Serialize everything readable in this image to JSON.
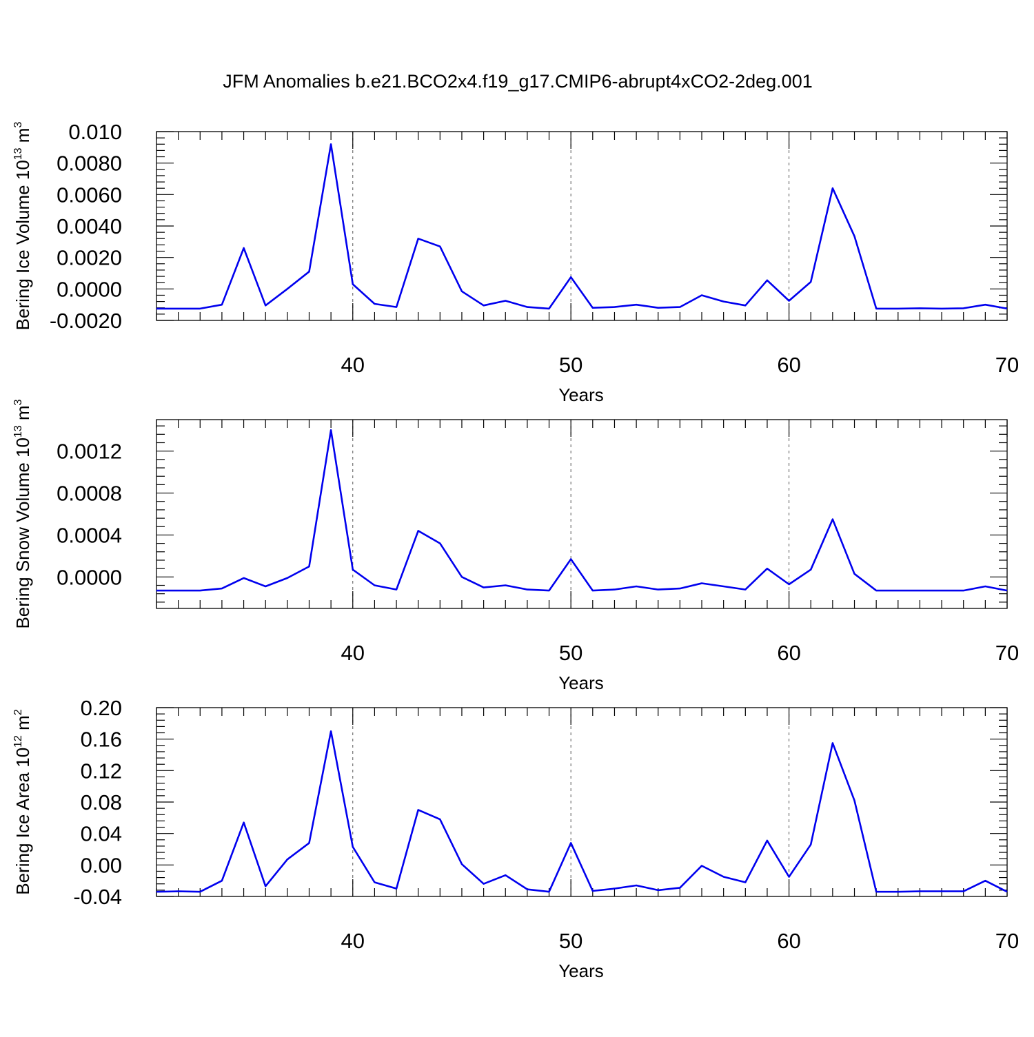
{
  "figure_title": "JFM Anomalies b.e21.BCO2x4.f19_g17.CMIP6-abrupt4xCO2-2deg.001",
  "line_color": "#0000ee",
  "chart_data": [
    {
      "type": "line",
      "xlabel": "Years",
      "ylabel": {
        "base": "Bering Ice Volume 10",
        "exp": "13",
        "unit": " m",
        "unit_exp": "3"
      },
      "xlim": [
        31,
        70
      ],
      "ylim": [
        -0.002,
        0.01
      ],
      "xticks": [
        40,
        50,
        60,
        70
      ],
      "xtick_labels": [
        "40",
        "50",
        "60",
        "70"
      ],
      "yticks": [
        -0.002,
        0,
        0.002,
        0.004,
        0.006,
        0.008,
        0.01
      ],
      "ytick_labels": [
        "-0.0020",
        "0.0000",
        "0.0020",
        "0.0040",
        "0.0060",
        "0.0080",
        "0.010"
      ],
      "grid_x": [
        40,
        50,
        60
      ],
      "x": [
        31,
        32,
        33,
        34,
        35,
        36,
        37,
        38,
        39,
        40,
        41,
        42,
        43,
        44,
        45,
        46,
        47,
        48,
        49,
        50,
        51,
        52,
        53,
        54,
        55,
        56,
        57,
        58,
        59,
        60,
        61,
        62,
        63,
        64,
        65,
        66,
        67,
        68,
        69,
        70
      ],
      "values": [
        -0.00125,
        -0.00125,
        -0.00125,
        -0.001,
        0.0026,
        -0.00105,
        0.0,
        0.0011,
        0.0092,
        0.0003,
        -0.00095,
        -0.00115,
        0.0032,
        0.0027,
        -0.00015,
        -0.00105,
        -0.00075,
        -0.00115,
        -0.00125,
        0.00075,
        -0.0012,
        -0.00115,
        -0.001,
        -0.0012,
        -0.00115,
        -0.0004,
        -0.0008,
        -0.00105,
        0.00055,
        -0.00075,
        0.00045,
        0.0064,
        0.00335,
        -0.00125,
        -0.00125,
        -0.00123,
        -0.00125,
        -0.00123,
        -0.001,
        -0.00125
      ]
    },
    {
      "type": "line",
      "xlabel": "Years",
      "ylabel": {
        "base": "Bering Snow Volume 10",
        "exp": "13",
        "unit": " m",
        "unit_exp": "3"
      },
      "xlim": [
        31,
        70
      ],
      "ylim": [
        -0.0003,
        0.0015
      ],
      "xticks": [
        40,
        50,
        60,
        70
      ],
      "xtick_labels": [
        "40",
        "50",
        "60",
        "70"
      ],
      "yticks": [
        0,
        0.0004,
        0.0008,
        0.0012
      ],
      "ytick_labels": [
        "0.0000",
        "0.0004",
        "0.0008",
        "0.0012"
      ],
      "grid_x": [
        40,
        50,
        60
      ],
      "x": [
        31,
        32,
        33,
        34,
        35,
        36,
        37,
        38,
        39,
        40,
        41,
        42,
        43,
        44,
        45,
        46,
        47,
        48,
        49,
        50,
        51,
        52,
        53,
        54,
        55,
        56,
        57,
        58,
        59,
        60,
        61,
        62,
        63,
        64,
        65,
        66,
        67,
        68,
        69,
        70
      ],
      "values": [
        -0.00013,
        -0.00013,
        -0.00013,
        -0.00011,
        -1e-05,
        -9e-05,
        -1e-05,
        0.0001,
        0.0014,
        7e-05,
        -8e-05,
        -0.00012,
        0.00044,
        0.00032,
        0.0,
        -0.0001,
        -8e-05,
        -0.00012,
        -0.00013,
        0.00017,
        -0.00013,
        -0.00012,
        -9e-05,
        -0.00012,
        -0.00011,
        -6e-05,
        -9e-05,
        -0.00012,
        8e-05,
        -7e-05,
        7e-05,
        0.00055,
        3e-05,
        -0.00013,
        -0.00013,
        -0.00013,
        -0.00013,
        -0.00013,
        -9e-05,
        -0.00013
      ]
    },
    {
      "type": "line",
      "xlabel": "Years",
      "ylabel": {
        "base": "Bering Ice Area 10",
        "exp": "12",
        "unit": " m",
        "unit_exp": "2"
      },
      "xlim": [
        31,
        70
      ],
      "ylim": [
        -0.04,
        0.2
      ],
      "xticks": [
        40,
        50,
        60,
        70
      ],
      "xtick_labels": [
        "40",
        "50",
        "60",
        "70"
      ],
      "yticks": [
        -0.04,
        0,
        0.04,
        0.08,
        0.12,
        0.16,
        0.2
      ],
      "ytick_labels": [
        "-0.04",
        "0.00",
        "0.04",
        "0.08",
        "0.12",
        "0.16",
        "0.20"
      ],
      "grid_x": [
        40,
        50,
        60
      ],
      "x": [
        31,
        32,
        33,
        34,
        35,
        36,
        37,
        38,
        39,
        40,
        41,
        42,
        43,
        44,
        45,
        46,
        47,
        48,
        49,
        50,
        51,
        52,
        53,
        54,
        55,
        56,
        57,
        58,
        59,
        60,
        61,
        62,
        63,
        64,
        65,
        66,
        67,
        68,
        69,
        70
      ],
      "values": [
        -0.034,
        -0.0335,
        -0.034,
        -0.02,
        0.054,
        -0.027,
        0.007,
        0.028,
        0.17,
        0.023,
        -0.022,
        -0.03,
        0.07,
        0.058,
        0.001,
        -0.024,
        -0.013,
        -0.031,
        -0.034,
        0.028,
        -0.033,
        -0.03,
        -0.026,
        -0.032,
        -0.029,
        -0.001,
        -0.015,
        -0.022,
        0.031,
        -0.015,
        0.026,
        0.155,
        0.082,
        -0.034,
        -0.034,
        -0.0335,
        -0.0335,
        -0.0335,
        -0.02,
        -0.034
      ]
    }
  ]
}
